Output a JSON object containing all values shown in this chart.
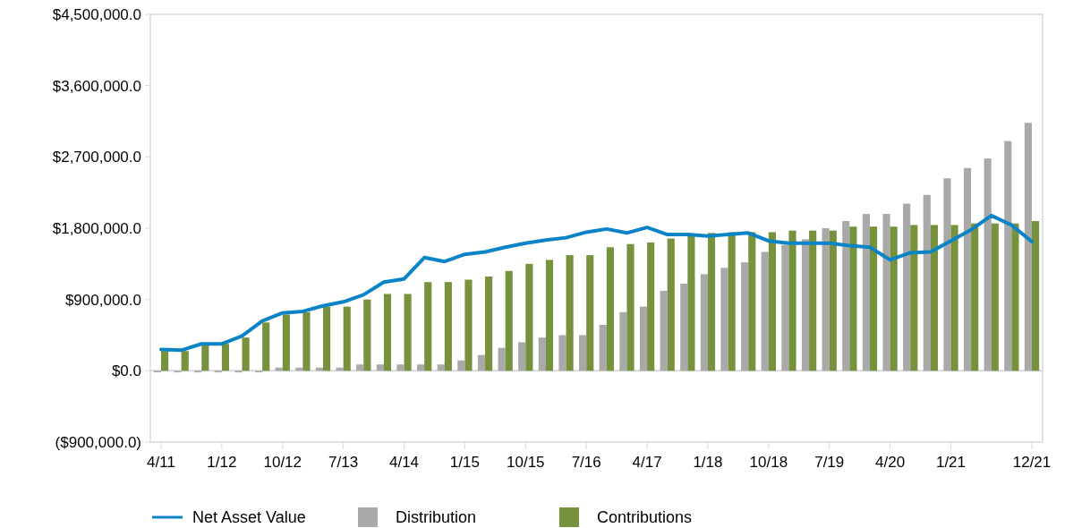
{
  "chart_data": {
    "type": "bar",
    "categories": [
      "4/11",
      null,
      null,
      "1/12",
      null,
      null,
      "10/12",
      null,
      null,
      "7/13",
      null,
      null,
      "4/14",
      null,
      null,
      "1/15",
      null,
      null,
      "10/15",
      null,
      null,
      "7/16",
      null,
      null,
      "4/17",
      null,
      null,
      "1/18",
      null,
      null,
      "10/18",
      null,
      null,
      "7/19",
      null,
      null,
      "4/20",
      null,
      null,
      "1/21",
      null,
      null,
      null,
      "12/21"
    ],
    "series": [
      {
        "name": "Net Asset Value",
        "type": "line",
        "color": "#0a84c6",
        "values": [
          270000,
          260000,
          340000,
          340000,
          440000,
          630000,
          730000,
          750000,
          820000,
          870000,
          960000,
          1120000,
          1160000,
          1430000,
          1380000,
          1470000,
          1500000,
          1560000,
          1610000,
          1650000,
          1680000,
          1750000,
          1790000,
          1740000,
          1810000,
          1720000,
          1720000,
          1700000,
          1720000,
          1740000,
          1640000,
          1610000,
          1610000,
          1610000,
          1580000,
          1560000,
          1400000,
          1490000,
          1500000,
          1640000,
          1780000,
          1960000,
          1840000,
          1630000
        ]
      },
      {
        "name": "Distribution",
        "color": "#a9a9a9",
        "values": [
          -20000,
          -20000,
          -20000,
          -20000,
          -20000,
          -20000,
          40000,
          40000,
          40000,
          40000,
          80000,
          80000,
          80000,
          80000,
          80000,
          130000,
          200000,
          290000,
          360000,
          420000,
          450000,
          450000,
          580000,
          740000,
          810000,
          1010000,
          1100000,
          1220000,
          1300000,
          1370000,
          1500000,
          1590000,
          1660000,
          1800000,
          1890000,
          1980000,
          1980000,
          2110000,
          2220000,
          2430000,
          2560000,
          2680000,
          2900000,
          3130000
        ]
      },
      {
        "name": "Contributions",
        "color": "#76923c",
        "values": [
          250000,
          250000,
          320000,
          340000,
          420000,
          610000,
          710000,
          740000,
          810000,
          810000,
          900000,
          970000,
          970000,
          1120000,
          1120000,
          1150000,
          1190000,
          1260000,
          1350000,
          1400000,
          1460000,
          1460000,
          1560000,
          1600000,
          1620000,
          1670000,
          1710000,
          1740000,
          1750000,
          1750000,
          1750000,
          1770000,
          1770000,
          1770000,
          1820000,
          1820000,
          1820000,
          1840000,
          1840000,
          1840000,
          1860000,
          1860000,
          1860000,
          1890000
        ]
      }
    ],
    "ylim": [
      -900000,
      4500000
    ],
    "yticks": [
      {
        "value": -900000,
        "label": "($900,000.0)"
      },
      {
        "value": 0,
        "label": "$0.0"
      },
      {
        "value": 900000,
        "label": "$900,000.0"
      },
      {
        "value": 1800000,
        "label": "$1,800,000.0"
      },
      {
        "value": 2700000,
        "label": "$2,700,000.0"
      },
      {
        "value": 3600000,
        "label": "$3,600,000.0"
      },
      {
        "value": 4500000,
        "label": "$4,500,000.0"
      }
    ],
    "legend": "bottom"
  }
}
